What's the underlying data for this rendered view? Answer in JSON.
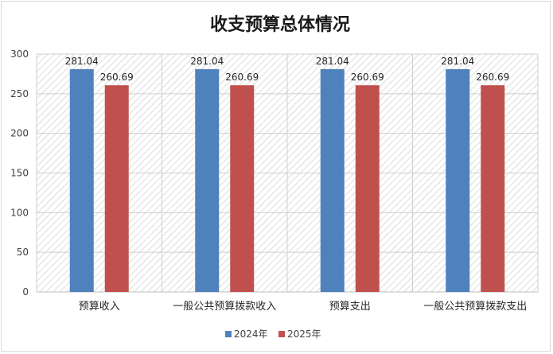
{
  "chart_data": {
    "type": "bar",
    "title": "收支预算总体情况",
    "categories": [
      "预算收入",
      "一般公共预算拨款收入",
      "预算支出",
      "一般公共预算拨款支出"
    ],
    "series": [
      {
        "name": "2024年",
        "values": [
          281.04,
          281.04,
          281.04,
          281.04
        ],
        "labels": [
          "281.04",
          "281.04",
          "281.04",
          "281.04"
        ],
        "color": "#4f81bd"
      },
      {
        "name": "2025年",
        "values": [
          260.69,
          260.69,
          260.69,
          260.69
        ],
        "labels": [
          "260.69",
          "260.69",
          "260.69",
          "260.69"
        ],
        "color": "#c0504d"
      }
    ],
    "ylim": [
      0,
      300
    ],
    "yticks": [
      "0",
      "50",
      "100",
      "150",
      "200",
      "250",
      "300"
    ],
    "grid": true,
    "legend": "bottom"
  }
}
